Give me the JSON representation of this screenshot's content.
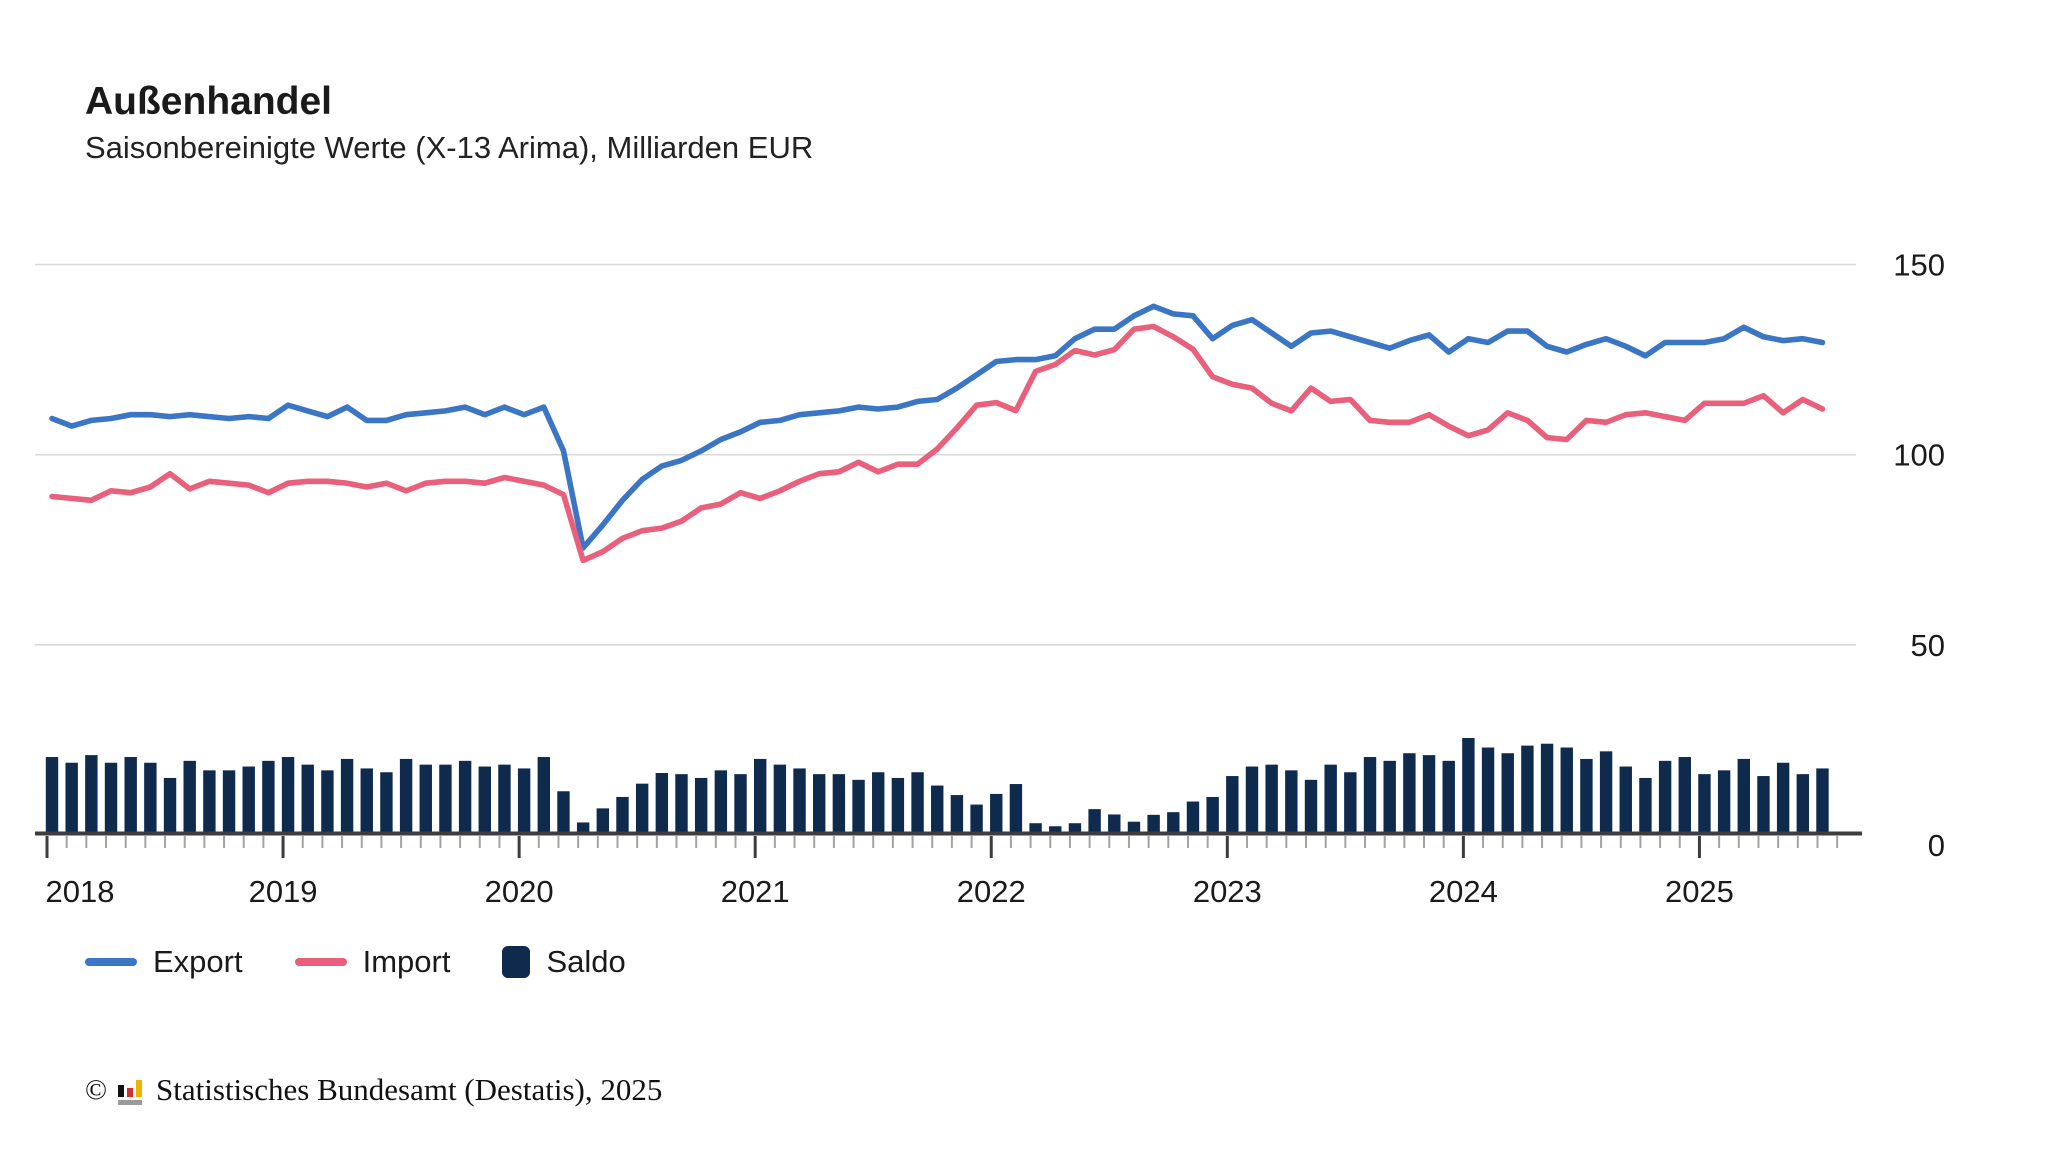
{
  "header": {
    "title": "Außenhandel",
    "subtitle": "Saisonbereinigte Werte (X-13 Arima), Milliarden EUR"
  },
  "legend": {
    "export_label": "Export",
    "import_label": "Import",
    "saldo_label": "Saldo"
  },
  "footer": {
    "copyright": "©",
    "source_text": "Statistisches Bundesamt (Destatis), 2025"
  },
  "colors": {
    "export_line": "#3b76c4",
    "import_line": "#e8607b",
    "saldo_bar": "#0e2a4d",
    "gridline": "#d9d9d9",
    "axis": "#3d3d3d",
    "minor_tick": "#a3a3a3",
    "label_text": "#1a1a1a",
    "logo_black": "#111111",
    "logo_red": "#d22f2f",
    "logo_gold": "#f0b400",
    "logo_gray": "#9a9a9a"
  },
  "chart_data": {
    "type": "combo-line-bar",
    "x": {
      "freq": "monthly",
      "start": "2018-01",
      "end": "2025-07",
      "n_points": 91,
      "year_labels": [
        "2018",
        "2019",
        "2020",
        "2021",
        "2022",
        "2023",
        "2024",
        "2025"
      ]
    },
    "y_axis": {
      "ticks": [
        150,
        100,
        50,
        0
      ],
      "unit": "Milliarden EUR",
      "ylim": [
        0,
        160
      ],
      "grid": true,
      "labels_position": "right"
    },
    "series": [
      {
        "name": "Export",
        "type": "line",
        "color": "#3b76c4",
        "values": [
          109.5,
          107.5,
          109,
          109.5,
          110.5,
          110.5,
          110,
          110.5,
          110,
          109.5,
          110,
          109.5,
          113,
          111.5,
          110,
          112.5,
          109,
          109,
          110.5,
          111,
          111.5,
          112.5,
          110.5,
          112.5,
          110.5,
          112.5,
          101,
          75.5,
          81.5,
          88,
          93.5,
          97,
          98.5,
          101,
          104,
          106,
          108.5,
          109,
          110.5,
          111,
          111.5,
          112.5,
          112,
          112.5,
          114,
          114.5,
          117.5,
          121,
          124.5,
          125,
          125,
          126,
          130.5,
          133,
          133,
          136.5,
          139,
          137,
          136.5,
          130.5,
          134,
          135.5,
          132,
          128.5,
          132,
          132.5,
          131,
          129.5,
          128,
          130,
          131.5,
          127,
          130.5,
          129.5,
          132.5,
          132.5,
          128.5,
          127,
          129,
          130.5,
          128.5,
          126,
          129.5,
          129.5,
          129.5,
          130.5,
          133.5,
          131,
          130,
          130.5,
          129.5
        ]
      },
      {
        "name": "Import",
        "type": "line",
        "color": "#e8607b",
        "values": [
          89,
          88.5,
          88,
          90.5,
          90,
          91.5,
          95,
          91,
          93,
          92.5,
          92,
          90,
          92.5,
          93,
          93,
          92.5,
          91.5,
          92.5,
          90.5,
          92.5,
          93,
          93,
          92.5,
          94,
          93,
          92,
          89.5,
          72.2,
          74.5,
          78,
          80,
          80.7,
          82.5,
          86,
          87,
          90,
          88.5,
          90.5,
          93,
          95,
          95.5,
          98,
          95.5,
          97.5,
          97.5,
          101.5,
          107,
          113,
          113.7,
          111.6,
          121.9,
          123.7,
          127.4,
          126.2,
          127.6,
          133,
          133.7,
          131,
          127.7,
          120.5,
          118.5,
          117.5,
          113.5,
          111.5,
          117.5,
          114,
          114.5,
          109,
          108.5,
          108.5,
          110.5,
          107.5,
          105,
          106.5,
          111,
          109,
          104.5,
          104,
          109,
          108.5,
          110.5,
          111,
          110,
          109,
          113.5,
          113.5,
          113.5,
          115.5,
          111,
          114.5,
          112
        ]
      },
      {
        "name": "Saldo",
        "type": "bar",
        "color": "#0e2a4d",
        "values": [
          20.5,
          19,
          21,
          19,
          20.5,
          19,
          15,
          19.5,
          17,
          17,
          18,
          19.5,
          20.5,
          18.5,
          17,
          20,
          17.5,
          16.5,
          20,
          18.5,
          18.5,
          19.5,
          18,
          18.5,
          17.5,
          20.5,
          11.5,
          3.3,
          7,
          10,
          13.5,
          16.3,
          16,
          15,
          17,
          16,
          20,
          18.5,
          17.5,
          16,
          16,
          14.5,
          16.5,
          15,
          16.5,
          13,
          10.5,
          8,
          10.8,
          13.4,
          3.1,
          2.3,
          3.1,
          6.8,
          5.4,
          3.5,
          5.3,
          6,
          8.8,
          10,
          15.5,
          18,
          18.5,
          17,
          14.5,
          18.5,
          16.5,
          20.5,
          19.5,
          21.5,
          21,
          19.5,
          25.5,
          23,
          21.5,
          23.5,
          24,
          23,
          20,
          22,
          18,
          15,
          19.5,
          20.5,
          16,
          17,
          20,
          15.5,
          19,
          16,
          17.5
        ]
      }
    ]
  }
}
